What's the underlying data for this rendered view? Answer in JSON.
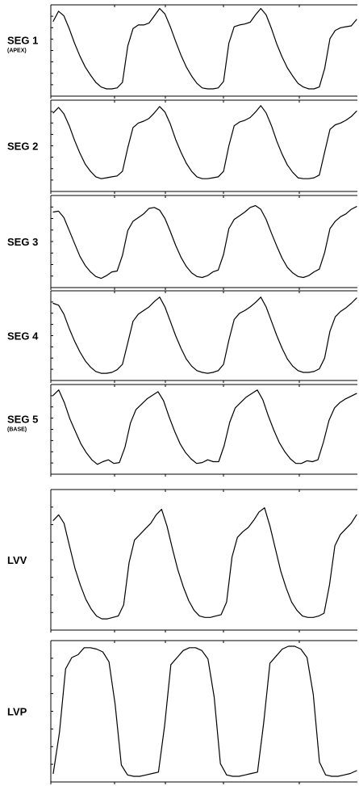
{
  "chart_data": [
    {
      "type": "line",
      "label": "SEG 1",
      "sublabel": "(APEX)",
      "y": [
        0.82,
        0.93,
        0.88,
        0.74,
        0.58,
        0.44,
        0.32,
        0.23,
        0.15,
        0.1,
        0.08,
        0.08,
        0.09,
        0.15,
        0.55,
        0.74,
        0.78,
        0.78,
        0.8,
        0.88,
        0.96,
        0.9,
        0.76,
        0.6,
        0.45,
        0.32,
        0.22,
        0.14,
        0.09,
        0.08,
        0.08,
        0.09,
        0.16,
        0.58,
        0.76,
        0.78,
        0.79,
        0.81,
        0.89,
        0.96,
        0.89,
        0.74,
        0.57,
        0.43,
        0.31,
        0.22,
        0.14,
        0.1,
        0.08,
        0.08,
        0.1,
        0.3,
        0.63,
        0.72,
        0.75,
        0.76,
        0.77,
        0.84
      ]
    },
    {
      "type": "line",
      "label": "SEG 2",
      "y": [
        0.86,
        0.92,
        0.85,
        0.72,
        0.56,
        0.42,
        0.3,
        0.22,
        0.16,
        0.14,
        0.15,
        0.16,
        0.17,
        0.22,
        0.48,
        0.7,
        0.75,
        0.77,
        0.8,
        0.86,
        0.93,
        0.87,
        0.74,
        0.57,
        0.43,
        0.31,
        0.22,
        0.16,
        0.14,
        0.14,
        0.15,
        0.16,
        0.22,
        0.5,
        0.72,
        0.76,
        0.78,
        0.81,
        0.87,
        0.94,
        0.86,
        0.72,
        0.55,
        0.41,
        0.29,
        0.21,
        0.15,
        0.14,
        0.14,
        0.15,
        0.18,
        0.43,
        0.68,
        0.73,
        0.75,
        0.78,
        0.82,
        0.88
      ]
    },
    {
      "type": "line",
      "label": "SEG 3",
      "y": [
        0.82,
        0.83,
        0.76,
        0.62,
        0.48,
        0.34,
        0.24,
        0.17,
        0.12,
        0.1,
        0.13,
        0.17,
        0.18,
        0.35,
        0.62,
        0.72,
        0.76,
        0.8,
        0.86,
        0.87,
        0.84,
        0.75,
        0.61,
        0.46,
        0.33,
        0.23,
        0.16,
        0.12,
        0.11,
        0.13,
        0.17,
        0.19,
        0.36,
        0.64,
        0.74,
        0.78,
        0.82,
        0.87,
        0.89,
        0.85,
        0.74,
        0.59,
        0.45,
        0.32,
        0.22,
        0.16,
        0.12,
        0.11,
        0.13,
        0.17,
        0.2,
        0.38,
        0.64,
        0.72,
        0.77,
        0.8,
        0.85,
        0.88
      ]
    },
    {
      "type": "line",
      "label": "SEG 4",
      "y": [
        0.86,
        0.84,
        0.74,
        0.58,
        0.44,
        0.32,
        0.22,
        0.15,
        0.1,
        0.08,
        0.08,
        0.09,
        0.12,
        0.18,
        0.42,
        0.66,
        0.74,
        0.78,
        0.82,
        0.88,
        0.93,
        0.82,
        0.66,
        0.5,
        0.36,
        0.24,
        0.16,
        0.11,
        0.09,
        0.08,
        0.09,
        0.11,
        0.18,
        0.45,
        0.68,
        0.75,
        0.78,
        0.82,
        0.87,
        0.93,
        0.82,
        0.66,
        0.5,
        0.36,
        0.24,
        0.16,
        0.11,
        0.09,
        0.09,
        0.1,
        0.13,
        0.25,
        0.55,
        0.71,
        0.77,
        0.81,
        0.86,
        0.92
      ]
    },
    {
      "type": "line",
      "label": "SEG 5",
      "sublabel": "(BASE)",
      "y": [
        0.88,
        0.94,
        0.8,
        0.62,
        0.48,
        0.34,
        0.24,
        0.16,
        0.11,
        0.14,
        0.16,
        0.12,
        0.13,
        0.3,
        0.57,
        0.72,
        0.78,
        0.84,
        0.88,
        0.92,
        0.82,
        0.64,
        0.48,
        0.34,
        0.24,
        0.17,
        0.12,
        0.13,
        0.16,
        0.14,
        0.14,
        0.32,
        0.58,
        0.74,
        0.8,
        0.86,
        0.9,
        0.94,
        0.83,
        0.65,
        0.49,
        0.35,
        0.25,
        0.17,
        0.12,
        0.12,
        0.15,
        0.14,
        0.16,
        0.36,
        0.6,
        0.74,
        0.8,
        0.84,
        0.87,
        0.9
      ]
    },
    {
      "type": "line",
      "label": "LVV",
      "y": [
        0.78,
        0.82,
        0.76,
        0.6,
        0.44,
        0.32,
        0.22,
        0.15,
        0.1,
        0.08,
        0.08,
        0.09,
        0.1,
        0.18,
        0.48,
        0.64,
        0.68,
        0.72,
        0.76,
        0.82,
        0.86,
        0.74,
        0.58,
        0.43,
        0.31,
        0.21,
        0.14,
        0.1,
        0.09,
        0.09,
        0.1,
        0.11,
        0.2,
        0.52,
        0.66,
        0.7,
        0.73,
        0.78,
        0.84,
        0.87,
        0.74,
        0.58,
        0.42,
        0.3,
        0.2,
        0.14,
        0.1,
        0.09,
        0.09,
        0.1,
        0.12,
        0.32,
        0.6,
        0.68,
        0.72,
        0.76,
        0.82
      ]
    },
    {
      "type": "line",
      "label": "LVP",
      "y": [
        0.06,
        0.35,
        0.8,
        0.88,
        0.9,
        0.95,
        0.95,
        0.94,
        0.92,
        0.85,
        0.55,
        0.12,
        0.05,
        0.04,
        0.04,
        0.05,
        0.06,
        0.07,
        0.4,
        0.83,
        0.88,
        0.93,
        0.95,
        0.95,
        0.93,
        0.87,
        0.6,
        0.13,
        0.05,
        0.04,
        0.04,
        0.05,
        0.06,
        0.07,
        0.42,
        0.84,
        0.89,
        0.94,
        0.96,
        0.96,
        0.94,
        0.88,
        0.62,
        0.14,
        0.05,
        0.04,
        0.04,
        0.05,
        0.06,
        0.08
      ]
    }
  ]
}
